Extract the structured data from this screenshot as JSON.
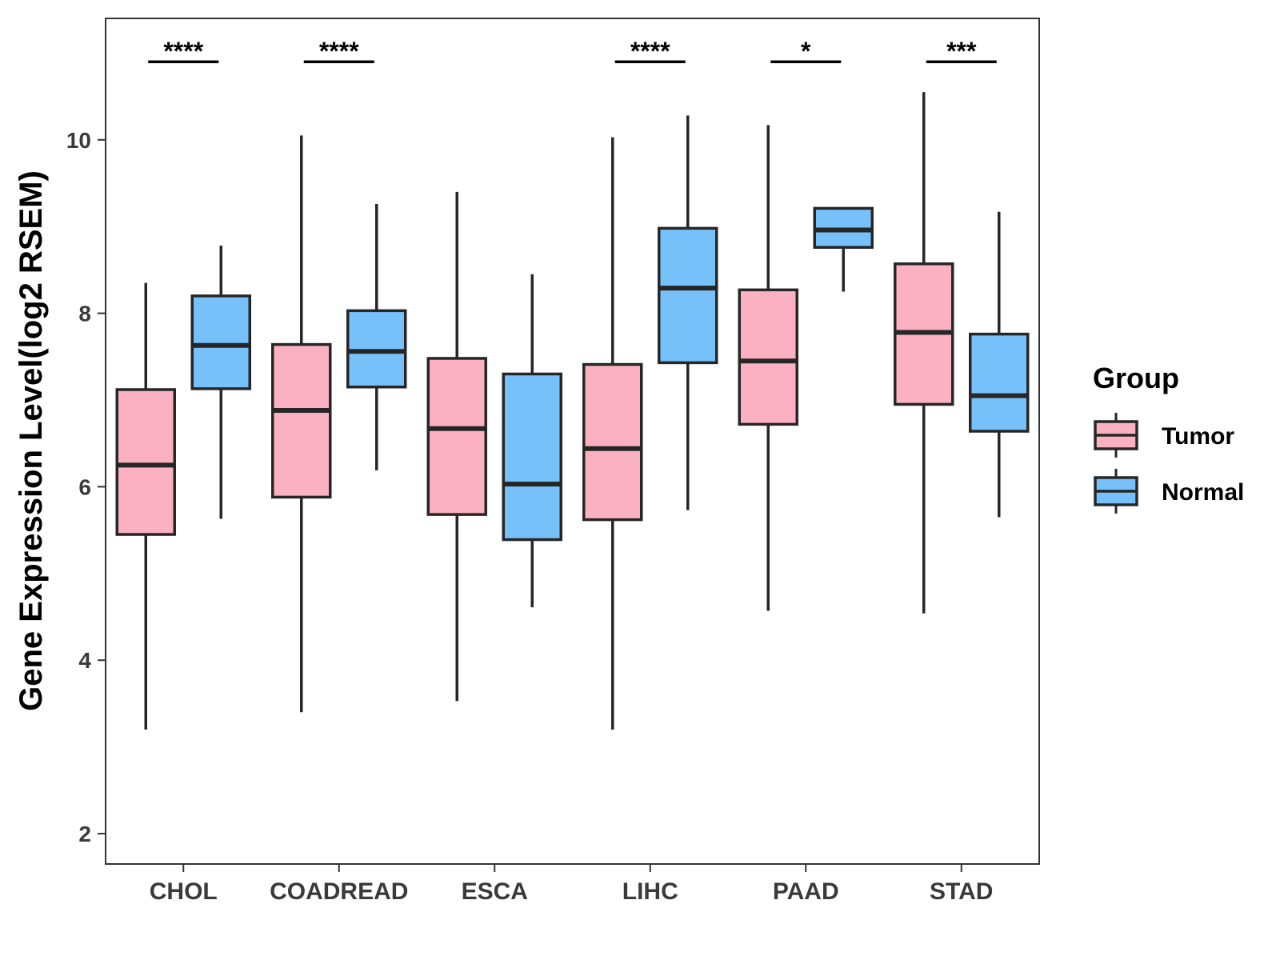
{
  "chart_data": {
    "type": "boxplot",
    "title": "",
    "xlabel": "",
    "ylabel": "Gene Expression Level(log2 RSEM)",
    "ylim": [
      1.65,
      11.4
    ],
    "yticks": [
      2,
      4,
      6,
      8,
      10
    ],
    "categories": [
      "CHOL",
      "COADREAD",
      "ESCA",
      "LIHC",
      "PAAD",
      "STAD"
    ],
    "legend": {
      "title": "Group",
      "position": "right",
      "entries": [
        "Tumor",
        "Normal"
      ]
    },
    "series": [
      {
        "name": "Tumor",
        "color": "#FBB1C2",
        "boxes": [
          {
            "whisker_low": 3.2,
            "q1": 5.45,
            "median": 6.25,
            "q3": 7.12,
            "whisker_high": 8.35
          },
          {
            "whisker_low": 3.4,
            "q1": 5.88,
            "median": 6.88,
            "q3": 7.64,
            "whisker_high": 10.05
          },
          {
            "whisker_low": 3.53,
            "q1": 5.68,
            "median": 6.67,
            "q3": 7.48,
            "whisker_high": 9.4
          },
          {
            "whisker_low": 3.2,
            "q1": 5.62,
            "median": 6.44,
            "q3": 7.41,
            "whisker_high": 10.03
          },
          {
            "whisker_low": 4.57,
            "q1": 6.72,
            "median": 7.45,
            "q3": 8.27,
            "whisker_high": 10.17
          },
          {
            "whisker_low": 4.54,
            "q1": 6.95,
            "median": 7.78,
            "q3": 8.57,
            "whisker_high": 10.55
          }
        ]
      },
      {
        "name": "Normal",
        "color": "#76C1FA",
        "boxes": [
          {
            "whisker_low": 5.63,
            "q1": 7.13,
            "median": 7.63,
            "q3": 8.2,
            "whisker_high": 8.78
          },
          {
            "whisker_low": 6.19,
            "q1": 7.15,
            "median": 7.56,
            "q3": 8.03,
            "whisker_high": 9.26
          },
          {
            "whisker_low": 4.61,
            "q1": 5.39,
            "median": 6.03,
            "q3": 7.3,
            "whisker_high": 8.45
          },
          {
            "whisker_low": 5.73,
            "q1": 7.43,
            "median": 8.29,
            "q3": 8.98,
            "whisker_high": 10.28
          },
          {
            "whisker_low": 8.25,
            "q1": 8.76,
            "median": 8.96,
            "q3": 9.21,
            "whisker_high": 9.21
          },
          {
            "whisker_low": 5.65,
            "q1": 6.64,
            "median": 7.05,
            "q3": 7.76,
            "whisker_high": 9.17
          }
        ]
      }
    ],
    "significance": [
      {
        "category": "CHOL",
        "label": "****"
      },
      {
        "category": "COADREAD",
        "label": "****"
      },
      {
        "category": "LIHC",
        "label": "****"
      },
      {
        "category": "PAAD",
        "label": "*"
      },
      {
        "category": "STAD",
        "label": "***"
      }
    ],
    "significance_y": 10.9,
    "stroke_color": "#262626"
  }
}
